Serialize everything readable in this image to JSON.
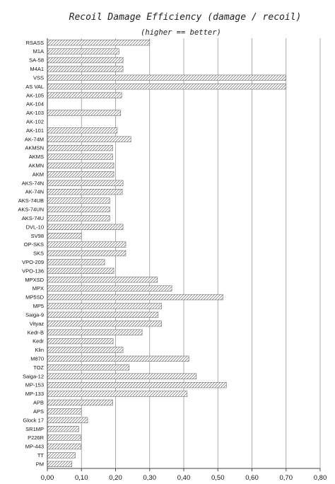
{
  "chart_data": {
    "type": "bar",
    "orientation": "horizontal",
    "title": "Recoil Damage Efficiency (damage / recoil)",
    "subtitle": "(higher == better)",
    "xlabel": "",
    "ylabel": "",
    "xlim": [
      0,
      0.8
    ],
    "xticks": [
      "0,00",
      "0,10",
      "0,20",
      "0,30",
      "0,40",
      "0,50",
      "0,60",
      "0,70",
      "0,80"
    ],
    "grid": true,
    "categories": [
      "RSASS",
      "M1A",
      "SA-58",
      "M4A1",
      "VSS",
      "AS VAL",
      "AK-105",
      "AK-104",
      "AK-103",
      "AK-102",
      "AK-101",
      "AK-74M",
      "AKMSN",
      "AKMS",
      "AKMN",
      "AKM",
      "AKS-74N",
      "AK-74N",
      "AKS-74UB",
      "AKS-74UN",
      "AKS-74U",
      "DVL-10",
      "SV98",
      "OP-SKS",
      "SKS",
      "VPO-209",
      "VPO-136",
      "MPXSD",
      "MPX",
      "MP5SD",
      "MP5",
      "Saiga-9",
      "Vityaz",
      "Kedr-B",
      "Kedr",
      "Klin",
      "M870",
      "TOZ",
      "Saiga-12",
      "MP-153",
      "MP-133",
      "APB",
      "APS",
      "Glock 17",
      "SR1MP",
      "P226R",
      "MP-443",
      "TT",
      "PM"
    ],
    "values": [
      0.3,
      0.21,
      0.222,
      0.222,
      0.7,
      0.7,
      0.218,
      0.0,
      0.215,
      0.0,
      0.205,
      0.245,
      0.192,
      0.192,
      0.195,
      0.195,
      0.222,
      0.22,
      0.183,
      0.183,
      0.183,
      0.222,
      0.1,
      0.23,
      0.23,
      0.168,
      0.195,
      0.323,
      0.365,
      0.515,
      0.335,
      0.325,
      0.335,
      0.278,
      0.193,
      0.222,
      0.415,
      0.24,
      0.437,
      0.525,
      0.41,
      0.192,
      0.1,
      0.118,
      0.092,
      0.098,
      0.098,
      0.082,
      0.072
    ]
  }
}
